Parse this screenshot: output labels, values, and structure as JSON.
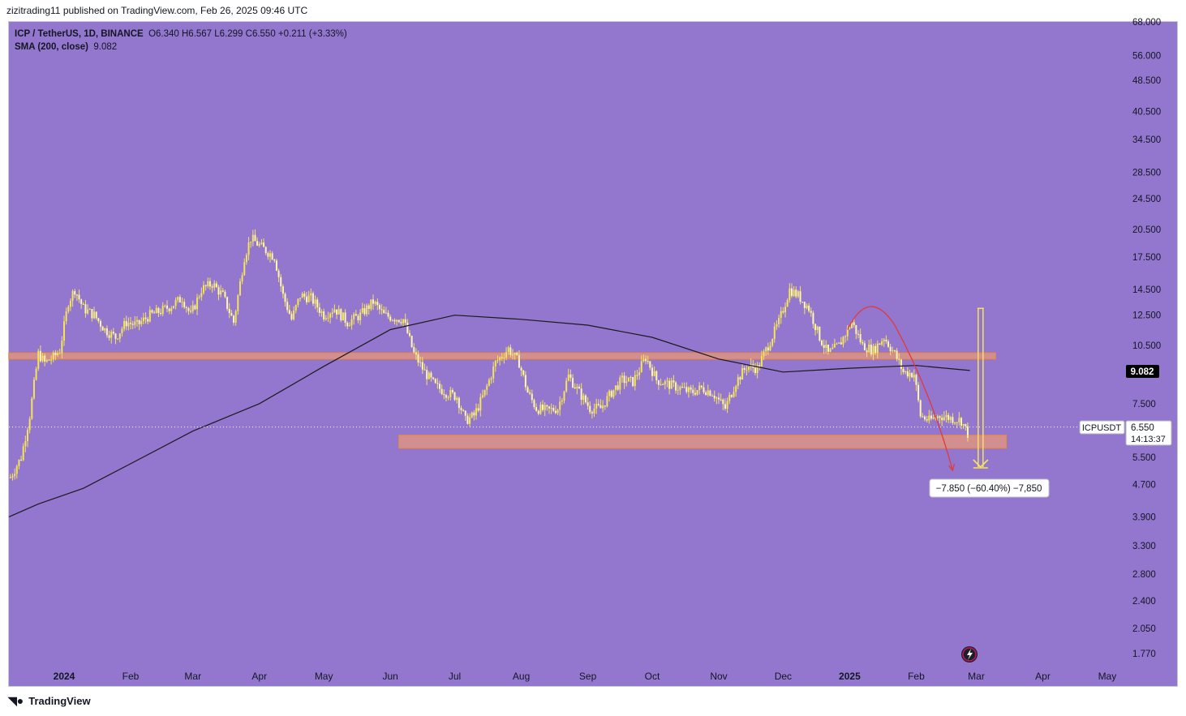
{
  "header": {
    "published": "zizitrading11 published on TradingView.com, Feb 26, 2025 09:46 UTC"
  },
  "legend": {
    "line1_symbol": "ICP / TetherUS, 1D, BINANCE",
    "line1_ohlc": "O6.340  H6.567  L6.299  C6.550  +0.211 (+3.33%)",
    "line2_name": "SMA (200, close)",
    "line2_value": "9.082"
  },
  "footer": {
    "brand": "TradingView"
  },
  "colors": {
    "background": "#9377cf",
    "candle": "#f5e35a",
    "sma": "#1a1a1a",
    "zone_fill": "#e8957b",
    "zone_stroke": "#f08a2c",
    "projection": "#f5e35a",
    "curve": "#e03a3a"
  },
  "labels": {
    "sma_value": "9.082",
    "symbol_tag": "ICPUSDT",
    "last_price": "6.550",
    "countdown": "14:13:37",
    "measure": "−7.850 (−60.40%) −7,850"
  },
  "chart_data": {
    "type": "candlestick",
    "scale": "log",
    "y_ticks": [
      "68.000",
      "56.000",
      "48.500",
      "40.500",
      "34.500",
      "28.500",
      "24.500",
      "20.500",
      "17.500",
      "14.500",
      "12.500",
      "10.500",
      "7.500",
      "5.500",
      "4.700",
      "3.900",
      "3.300",
      "2.800",
      "2.400",
      "2.050",
      "1.770"
    ],
    "x_ticks": [
      "2024",
      "Feb",
      "Mar",
      "Apr",
      "May",
      "Jun",
      "Jul",
      "Aug",
      "Sep",
      "Oct",
      "Nov",
      "Dec",
      "2025",
      "Feb",
      "Mar",
      "Apr",
      "May"
    ],
    "close_series": [
      {
        "date": "2023-12-07",
        "close": 4.9
      },
      {
        "date": "2023-12-12",
        "close": 5.5
      },
      {
        "date": "2023-12-16",
        "close": 7.0
      },
      {
        "date": "2023-12-20",
        "close": 10.0
      },
      {
        "date": "2023-12-23",
        "close": 9.5
      },
      {
        "date": "2023-12-27",
        "close": 9.8
      },
      {
        "date": "2023-12-30",
        "close": 10.2
      },
      {
        "date": "2024-01-03",
        "close": 13.5
      },
      {
        "date": "2024-01-06",
        "close": 14.5
      },
      {
        "date": "2024-01-10",
        "close": 13.0
      },
      {
        "date": "2024-01-15",
        "close": 12.5
      },
      {
        "date": "2024-01-20",
        "close": 11.5
      },
      {
        "date": "2024-01-25",
        "close": 11.0
      },
      {
        "date": "2024-01-30",
        "close": 12.0
      },
      {
        "date": "2024-02-04",
        "close": 11.8
      },
      {
        "date": "2024-02-10",
        "close": 12.5
      },
      {
        "date": "2024-02-15",
        "close": 12.8
      },
      {
        "date": "2024-02-20",
        "close": 13.2
      },
      {
        "date": "2024-02-25",
        "close": 13.8
      },
      {
        "date": "2024-02-29",
        "close": 12.5
      },
      {
        "date": "2024-03-05",
        "close": 14.5
      },
      {
        "date": "2024-03-10",
        "close": 15.0
      },
      {
        "date": "2024-03-15",
        "close": 14.0
      },
      {
        "date": "2024-03-20",
        "close": 12.0
      },
      {
        "date": "2024-03-25",
        "close": 17.5
      },
      {
        "date": "2024-03-28",
        "close": 19.5
      },
      {
        "date": "2024-04-02",
        "close": 18.5
      },
      {
        "date": "2024-04-08",
        "close": 17.5
      },
      {
        "date": "2024-04-12",
        "close": 14.0
      },
      {
        "date": "2024-04-16",
        "close": 12.2
      },
      {
        "date": "2024-04-20",
        "close": 14.0
      },
      {
        "date": "2024-04-25",
        "close": 13.8
      },
      {
        "date": "2024-05-01",
        "close": 12.5
      },
      {
        "date": "2024-05-06",
        "close": 13.0
      },
      {
        "date": "2024-05-12",
        "close": 12.0
      },
      {
        "date": "2024-05-18",
        "close": 12.5
      },
      {
        "date": "2024-05-24",
        "close": 13.5
      },
      {
        "date": "2024-05-29",
        "close": 12.5
      },
      {
        "date": "2024-06-03",
        "close": 12.3
      },
      {
        "date": "2024-06-07",
        "close": 12.2
      },
      {
        "date": "2024-06-12",
        "close": 10.0
      },
      {
        "date": "2024-06-17",
        "close": 9.0
      },
      {
        "date": "2024-06-22",
        "close": 8.3
      },
      {
        "date": "2024-06-27",
        "close": 8.0
      },
      {
        "date": "2024-07-02",
        "close": 7.8
      },
      {
        "date": "2024-07-06",
        "close": 6.8
      },
      {
        "date": "2024-07-10",
        "close": 7.0
      },
      {
        "date": "2024-07-15",
        "close": 8.0
      },
      {
        "date": "2024-07-20",
        "close": 9.5
      },
      {
        "date": "2024-07-26",
        "close": 10.3
      },
      {
        "date": "2024-07-31",
        "close": 9.5
      },
      {
        "date": "2024-08-04",
        "close": 8.0
      },
      {
        "date": "2024-08-08",
        "close": 7.3
      },
      {
        "date": "2024-08-13",
        "close": 7.2
      },
      {
        "date": "2024-08-18",
        "close": 7.3
      },
      {
        "date": "2024-08-23",
        "close": 8.8
      },
      {
        "date": "2024-08-28",
        "close": 8.0
      },
      {
        "date": "2024-09-02",
        "close": 7.3
      },
      {
        "date": "2024-09-07",
        "close": 7.3
      },
      {
        "date": "2024-09-12",
        "close": 8.0
      },
      {
        "date": "2024-09-17",
        "close": 8.6
      },
      {
        "date": "2024-09-22",
        "close": 8.5
      },
      {
        "date": "2024-09-28",
        "close": 9.8
      },
      {
        "date": "2024-10-03",
        "close": 8.6
      },
      {
        "date": "2024-10-08",
        "close": 8.4
      },
      {
        "date": "2024-10-14",
        "close": 8.2
      },
      {
        "date": "2024-10-19",
        "close": 8.0
      },
      {
        "date": "2024-10-24",
        "close": 8.2
      },
      {
        "date": "2024-10-29",
        "close": 8.0
      },
      {
        "date": "2024-11-04",
        "close": 7.3
      },
      {
        "date": "2024-11-09",
        "close": 8.5
      },
      {
        "date": "2024-11-14",
        "close": 9.3
      },
      {
        "date": "2024-11-19",
        "close": 9.2
      },
      {
        "date": "2024-11-24",
        "close": 10.5
      },
      {
        "date": "2024-11-29",
        "close": 12.0
      },
      {
        "date": "2024-12-04",
        "close": 14.5
      },
      {
        "date": "2024-12-08",
        "close": 14.0
      },
      {
        "date": "2024-12-13",
        "close": 13.0
      },
      {
        "date": "2024-12-18",
        "close": 11.0
      },
      {
        "date": "2024-12-22",
        "close": 10.0
      },
      {
        "date": "2024-12-27",
        "close": 10.5
      },
      {
        "date": "2025-01-02",
        "close": 12.0
      },
      {
        "date": "2025-01-07",
        "close": 10.5
      },
      {
        "date": "2025-01-12",
        "close": 10.2
      },
      {
        "date": "2025-01-17",
        "close": 11.0
      },
      {
        "date": "2025-01-22",
        "close": 10.0
      },
      {
        "date": "2025-01-26",
        "close": 9.0
      },
      {
        "date": "2025-01-31",
        "close": 8.9
      },
      {
        "date": "2025-02-03",
        "close": 7.0
      },
      {
        "date": "2025-02-07",
        "close": 6.8
      },
      {
        "date": "2025-02-12",
        "close": 7.0
      },
      {
        "date": "2025-02-17",
        "close": 6.9
      },
      {
        "date": "2025-02-22",
        "close": 6.8
      },
      {
        "date": "2025-02-25",
        "close": 6.3
      },
      {
        "date": "2025-02-26",
        "close": 6.55
      }
    ],
    "sma_series": [
      {
        "date": "2023-12-01",
        "value": 3.9
      },
      {
        "date": "2023-12-20",
        "value": 4.2
      },
      {
        "date": "2024-01-10",
        "value": 4.6
      },
      {
        "date": "2024-02-01",
        "value": 5.3
      },
      {
        "date": "2024-03-01",
        "value": 6.4
      },
      {
        "date": "2024-04-01",
        "value": 7.5
      },
      {
        "date": "2024-05-01",
        "value": 9.3
      },
      {
        "date": "2024-06-01",
        "value": 11.5
      },
      {
        "date": "2024-07-01",
        "value": 12.5
      },
      {
        "date": "2024-08-01",
        "value": 12.2
      },
      {
        "date": "2024-09-01",
        "value": 11.8
      },
      {
        "date": "2024-10-01",
        "value": 11.0
      },
      {
        "date": "2024-11-01",
        "value": 9.7
      },
      {
        "date": "2024-12-01",
        "value": 9.0
      },
      {
        "date": "2025-01-01",
        "value": 9.2
      },
      {
        "date": "2025-02-01",
        "value": 9.35
      },
      {
        "date": "2025-02-26",
        "value": 9.082
      }
    ],
    "zones": [
      {
        "from": "2023-12-01",
        "to": "2025-03-10",
        "low": 9.7,
        "high": 10.05
      },
      {
        "from": "2024-06-05",
        "to": "2025-03-15",
        "low": 5.8,
        "high": 6.25
      }
    ],
    "projection": {
      "date": "2025-03-03",
      "from": 13.0,
      "to": 5.2
    }
  }
}
